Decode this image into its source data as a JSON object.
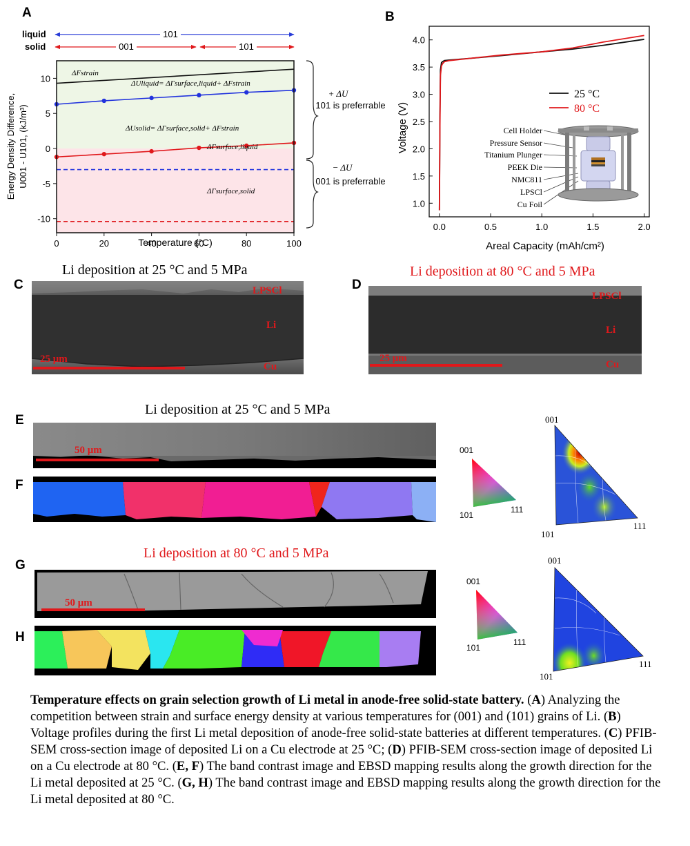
{
  "figure": {
    "panel_labels": {
      "a": "A",
      "b": "B",
      "c": "C",
      "d": "D",
      "e": "E",
      "f": "F",
      "g": "G",
      "h": "H"
    },
    "panelA": {
      "arrow_labels": {
        "liquid": "liquid",
        "solid": "solid",
        "liquid_phase": "101",
        "solid_low": "001",
        "solid_high": "101"
      },
      "ylabel_line1": "Energy Density Difference,",
      "ylabel_line2": "U001 - U101, (kJ/m³)",
      "xlabel": "Temperature (°C)",
      "x_ticks": [
        "0",
        "20",
        "40",
        "60",
        "80",
        "100"
      ],
      "y_ticks": [
        "10",
        "5",
        "0",
        "-5",
        "-10"
      ],
      "curve_labels": {
        "strain": "ΔFstrain",
        "liquid": "ΔUliquid= ΔΓsurface,liquid+ ΔFstrain",
        "solid": "ΔUsolid= ΔΓsurface,solid+ ΔFstrain",
        "surf_liquid": "ΔΓsurface,liquid",
        "surf_solid": "ΔΓsurface,solid"
      },
      "brace_upper": {
        "line1": "+ ΔU",
        "line2": "101 is preferrable"
      },
      "brace_lower": {
        "line1": "− ΔU",
        "line2": "001 is preferrable"
      }
    },
    "panelB": {
      "xlabel": "Areal Capacity (mAh/cm²)",
      "ylabel": "Voltage (V)",
      "x_ticks": [
        "0.0",
        "0.5",
        "1.0",
        "1.5",
        "2.0"
      ],
      "y_ticks": [
        "4.0",
        "3.5",
        "3.0",
        "2.5",
        "2.0",
        "1.5",
        "1.0"
      ],
      "legend": [
        {
          "name": "25 °C",
          "color": "#111111"
        },
        {
          "name": "80 °C",
          "color": "#e0181b"
        }
      ],
      "cell_labels": [
        "Cell Holder",
        "Pressure Sensor",
        "Titanium Plunger",
        "PEEK Die",
        "NMC811",
        "LPSCl",
        "Cu Foil"
      ]
    },
    "panelC": {
      "title": "Li deposition at 25 °C and 5 MPa",
      "lpscl": "LPSCl",
      "li": "Li",
      "cu": "Cu",
      "scale": "25 μm"
    },
    "panelD": {
      "title": "Li deposition at 80 °C and 5 MPa",
      "lpscl": "LPSCl",
      "li": "Li",
      "cu": "Cu",
      "scale": "25 μm"
    },
    "panelE": {
      "title": "Li deposition at 25 °C and 5 MPa",
      "scale": "50 μm"
    },
    "panelG": {
      "title": "Li deposition at 80 °C and 5 MPa",
      "scale": "50 μm"
    },
    "ipf": {
      "c001": "001",
      "c101": "101",
      "c111": "111"
    }
  },
  "chart_data": [
    {
      "type": "line",
      "title": "",
      "xlabel": "Temperature (°C)",
      "ylabel": "Energy Density Difference, U001 - U101, (kJ/m³)",
      "xlim": [
        0,
        100
      ],
      "ylim": [
        -12,
        12.5
      ],
      "series": [
        {
          "name": "ΔFstrain",
          "color": "#111111",
          "style": "solid",
          "x": [
            0,
            100
          ],
          "y": [
            9.3,
            11.3
          ]
        },
        {
          "name": "ΔUliquid",
          "color": "#2233dd",
          "style": "solid-markers",
          "x": [
            0,
            20,
            40,
            60,
            80,
            100
          ],
          "y": [
            6.3,
            6.8,
            7.2,
            7.6,
            8.0,
            8.3
          ]
        },
        {
          "name": "ΔUsolid",
          "color": "#e0181b",
          "style": "solid-markers",
          "x": [
            0,
            20,
            40,
            60,
            80,
            100
          ],
          "y": [
            -1.2,
            -0.8,
            -0.4,
            0.1,
            0.4,
            0.8
          ]
        },
        {
          "name": "ΔΓsurface,liquid",
          "color": "#2233dd",
          "style": "dashed",
          "x": [
            0,
            100
          ],
          "y": [
            -3.0,
            -3.0
          ]
        },
        {
          "name": "ΔΓsurface,solid",
          "color": "#e0181b",
          "style": "dashed",
          "x": [
            0,
            100
          ],
          "y": [
            -10.4,
            -10.4
          ]
        }
      ],
      "shaded_regions": [
        {
          "from": 0,
          "to": 12.5,
          "color": "#eef6e6",
          "label": "101 is preferrable"
        },
        {
          "from": -12,
          "to": 0,
          "color": "#fde4e8",
          "label": "001 is preferrable"
        }
      ]
    },
    {
      "type": "line",
      "title": "",
      "xlabel": "Areal Capacity (mAh/cm²)",
      "ylabel": "Voltage (V)",
      "xlim": [
        -0.1,
        2.05
      ],
      "ylim": [
        0.75,
        4.25
      ],
      "series": [
        {
          "name": "25 °C",
          "color": "#111111",
          "x": [
            0.0,
            0.005,
            0.01,
            0.02,
            0.03,
            0.05,
            0.1,
            0.3,
            0.6,
            1.0,
            1.3,
            1.6,
            2.0
          ],
          "y": [
            0.87,
            2.6,
            3.45,
            3.58,
            3.6,
            3.62,
            3.63,
            3.66,
            3.71,
            3.78,
            3.83,
            3.9,
            4.01
          ]
        },
        {
          "name": "80 °C",
          "color": "#e0181b",
          "x": [
            0.0,
            0.005,
            0.01,
            0.02,
            0.03,
            0.05,
            0.1,
            0.3,
            0.6,
            1.0,
            1.3,
            1.6,
            2.0
          ],
          "y": [
            0.87,
            2.4,
            3.35,
            3.52,
            3.56,
            3.6,
            3.62,
            3.66,
            3.72,
            3.78,
            3.85,
            3.96,
            4.08
          ]
        }
      ]
    }
  ],
  "caption": {
    "bold_title": "Temperature effects on grain selection growth of Li metal in anode-free solid-state battery.",
    "parts": [
      {
        "k": "A",
        "t": "Analyzing the competition between strain and surface energy density at various temperatures for (001) and (101) grains of Li."
      },
      {
        "k": "B",
        "t": "Voltage profiles during the first Li metal deposition of anode-free solid-state batteries at different temperatures."
      },
      {
        "k": "C",
        "t": "PFIB-SEM cross-section image of deposited Li on a Cu electrode at 25 °C;"
      },
      {
        "k": "D",
        "t": "PFIB-SEM cross-section image of deposited Li on a Cu electrode at 80 °C."
      },
      {
        "k": "E, F",
        "t": "The band contrast image and EBSD mapping results along the growth direction for the Li metal deposited at 25 °C."
      },
      {
        "k": "G, H",
        "t": "The band contrast image and EBSD mapping results along the growth direction for the Li metal deposited at 80 °C."
      }
    ]
  }
}
